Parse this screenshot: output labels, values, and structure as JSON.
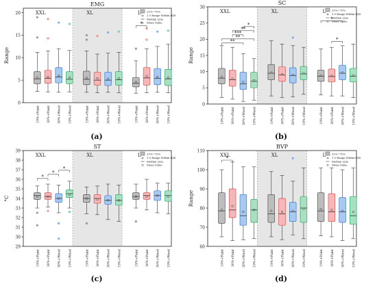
{
  "figure": {
    "captions": [
      "(a)",
      "(b)",
      "(c)",
      "(d)"
    ]
  },
  "chart_data": [
    {
      "type": "boxplot",
      "panel": "(a)",
      "title": "EMG",
      "xlabel": "",
      "ylabel": "Range",
      "ylim": [
        0,
        21
      ],
      "yticks": [
        0,
        5,
        10,
        15,
        20
      ],
      "groups": [
        "XXL",
        "XL",
        "L"
      ],
      "categories": [
        "19%+Paint",
        "30%+Paint",
        "30%+Wood",
        "19%+Wood"
      ],
      "legend": {
        "position": "top-right",
        "entries": [
          "25%~75%",
          "1.5 Range Within IQR",
          "Median Line",
          "Mean Value"
        ]
      },
      "boxes": [
        {
          "group": "XXL",
          "category": "19%+Paint",
          "q1": 4.2,
          "median": 5.3,
          "q3": 6.9,
          "mean": 5.6,
          "whisker_low": 2.5,
          "whisker_high": 11.2,
          "outliers": [
            19.0,
            14.5
          ]
        },
        {
          "group": "XXL",
          "category": "30%+Paint",
          "q1": 4.3,
          "median": 5.4,
          "q3": 7.2,
          "mean": 5.7,
          "whisker_low": 2.4,
          "whisker_high": 11.5,
          "outliers": [
            18.6,
            14.3
          ]
        },
        {
          "group": "XXL",
          "category": "30%+Wood",
          "q1": 4.4,
          "median": 5.7,
          "q3": 7.8,
          "mean": 6.0,
          "whisker_low": 2.3,
          "whisker_high": 12.0,
          "outliers": [
            17.8
          ]
        },
        {
          "group": "XXL",
          "category": "19%+Wood",
          "q1": 4.2,
          "median": 5.2,
          "q3": 6.9,
          "mean": 5.6,
          "whisker_low": 2.4,
          "whisker_high": 11.6,
          "outliers": [
            17.5
          ]
        },
        {
          "group": "XL",
          "category": "19%+Paint",
          "q1": 4.0,
          "median": 5.2,
          "q3": 7.0,
          "mean": 5.5,
          "whisker_low": 2.3,
          "whisker_high": 11.5,
          "outliers": [
            15.0,
            14.0
          ]
        },
        {
          "group": "XL",
          "category": "30%+Paint",
          "q1": 3.9,
          "median": 5.0,
          "q3": 6.8,
          "mean": 5.4,
          "whisker_low": 2.2,
          "whisker_high": 10.8,
          "outliers": [
            14.8
          ]
        },
        {
          "group": "XL",
          "category": "30%+Wood",
          "q1": 3.8,
          "median": 5.0,
          "q3": 6.8,
          "mean": 5.3,
          "whisker_low": 2.3,
          "whisker_high": 11.0,
          "outliers": [
            15.6
          ]
        },
        {
          "group": "XL",
          "category": "19%+Wood",
          "q1": 3.9,
          "median": 5.1,
          "q3": 6.9,
          "mean": 5.4,
          "whisker_low": 2.2,
          "whisker_high": 11.2,
          "outliers": [
            15.8
          ]
        },
        {
          "group": "L",
          "category": "19%+Paint",
          "q1": 3.5,
          "median": 4.3,
          "q3": 5.6,
          "mean": 4.6,
          "whisker_low": 2.1,
          "whisker_high": 9.3,
          "outliers": [
            12.0
          ]
        },
        {
          "group": "L",
          "category": "30%+Paint",
          "q1": 3.9,
          "median": 5.5,
          "q3": 7.8,
          "mean": 5.9,
          "whisker_low": 2.2,
          "whisker_high": 12.0,
          "outliers": [
            14.0,
            16.5
          ]
        },
        {
          "group": "L",
          "category": "30%+Wood",
          "q1": 4.0,
          "median": 5.4,
          "q3": 7.6,
          "mean": 5.7,
          "whisker_low": 2.3,
          "whisker_high": 12.5,
          "outliers": [
            15.8
          ]
        },
        {
          "group": "L",
          "category": "19%+Wood",
          "q1": 3.8,
          "median": 5.3,
          "q3": 7.4,
          "mean": 5.6,
          "whisker_low": 2.2,
          "whisker_high": 13.0,
          "outliers": [
            16.0
          ]
        }
      ],
      "significance": [
        {
          "group": "L",
          "from": 0,
          "to": 1,
          "label": "*"
        }
      ]
    },
    {
      "type": "boxplot",
      "panel": "(b)",
      "title": "SC",
      "xlabel": "",
      "ylabel": "Range",
      "ylim": [
        0,
        30
      ],
      "yticks": [
        0,
        5,
        10,
        15,
        20,
        25,
        30
      ],
      "groups": [
        "XXL",
        "XL",
        "L"
      ],
      "categories": [
        "19%+Paint",
        "30%+Paint",
        "30%+Wood",
        "19%+Wood"
      ],
      "legend": {
        "position": "top-right",
        "entries": [
          "25%~75%",
          "1.5 Range Within IQR",
          "Median Line",
          "Mean Value"
        ]
      },
      "boxes": [
        {
          "group": "XXL",
          "category": "19%+Paint",
          "q1": 6.2,
          "median": 8.0,
          "q3": 11.0,
          "mean": 8.3,
          "whisker_low": 2.0,
          "whisker_high": 18.0,
          "outliers": []
        },
        {
          "group": "XXL",
          "category": "30%+Paint",
          "q1": 5.5,
          "median": 7.5,
          "q3": 10.5,
          "mean": 7.8,
          "whisker_low": 1.5,
          "whisker_high": 17.5,
          "outliers": []
        },
        {
          "group": "XXL",
          "category": "30%+Wood",
          "q1": 4.5,
          "median": 6.2,
          "q3": 9.8,
          "mean": 6.8,
          "whisker_low": 0.8,
          "whisker_high": 15.5,
          "outliers": []
        },
        {
          "group": "XXL",
          "category": "19%+Wood",
          "q1": 5.0,
          "median": 7.0,
          "q3": 9.8,
          "mean": 7.3,
          "whisker_low": 1.2,
          "whisker_high": 14.0,
          "outliers": []
        },
        {
          "group": "XL",
          "category": "19%+Paint",
          "q1": 7.5,
          "median": 9.5,
          "q3": 12.2,
          "mean": 9.7,
          "whisker_low": 2.5,
          "whisker_high": 19.5,
          "outliers": []
        },
        {
          "group": "XL",
          "category": "30%+Paint",
          "q1": 7.0,
          "median": 9.0,
          "q3": 11.5,
          "mean": 9.2,
          "whisker_low": 2.0,
          "whisker_high": 18.5,
          "outliers": []
        },
        {
          "group": "XL",
          "category": "30%+Wood",
          "q1": 6.5,
          "median": 8.8,
          "q3": 11.2,
          "mean": 9.0,
          "whisker_low": 2.2,
          "whisker_high": 18.0,
          "outliers": [
            20.5
          ]
        },
        {
          "group": "XL",
          "category": "19%+Wood",
          "q1": 7.5,
          "median": 9.3,
          "q3": 11.6,
          "mean": 9.5,
          "whisker_low": 3.0,
          "whisker_high": 17.5,
          "outliers": []
        },
        {
          "group": "L",
          "category": "19%+Paint",
          "q1": 7.0,
          "median": 8.6,
          "q3": 10.5,
          "mean": 8.8,
          "whisker_low": 2.8,
          "whisker_high": 17.0,
          "outliers": []
        },
        {
          "group": "L",
          "category": "30%+Paint",
          "q1": 6.8,
          "median": 8.5,
          "q3": 10.8,
          "mean": 8.7,
          "whisker_low": 2.5,
          "whisker_high": 17.5,
          "outliers": []
        },
        {
          "group": "L",
          "category": "30%+Wood",
          "q1": 7.5,
          "median": 9.5,
          "q3": 12.0,
          "mean": 9.7,
          "whisker_low": 2.5,
          "whisker_high": 18.0,
          "outliers": []
        },
        {
          "group": "L",
          "category": "19%+Wood",
          "q1": 6.8,
          "median": 8.6,
          "q3": 11.0,
          "mean": 8.8,
          "whisker_low": 2.0,
          "whisker_high": 18.5,
          "outliers": []
        }
      ],
      "significance": [
        {
          "group": "XXL",
          "from": 0,
          "to": 2,
          "label": "**"
        },
        {
          "group": "XXL",
          "from": 0,
          "to": 3,
          "label": "**"
        },
        {
          "group": "XXL",
          "from": 1,
          "to": 2,
          "label": "***"
        },
        {
          "group": "XXL",
          "from": 1,
          "to": 3,
          "label": "**"
        },
        {
          "group": "XXL",
          "from": 2,
          "to": 3,
          "label": "*"
        },
        {
          "group": "L",
          "from": 0,
          "to": 2,
          "label": "*"
        },
        {
          "group": "L",
          "from": 1,
          "to": 2,
          "label": "*"
        }
      ]
    },
    {
      "type": "boxplot",
      "panel": "(c)",
      "title": "ST",
      "xlabel": "",
      "ylabel": "°C",
      "ylim": [
        29,
        39
      ],
      "yticks": [
        29,
        30,
        31,
        32,
        33,
        34,
        35,
        36,
        37,
        38,
        39
      ],
      "groups": [
        "XXL",
        "XL",
        "L"
      ],
      "categories": [
        "19%+Paint",
        "30%+Paint",
        "30%+Wood",
        "19%+Wood"
      ],
      "legend": {
        "position": "top-right",
        "entries": [
          "25%~75%",
          "1.5 Range Within IQR",
          "Median Line",
          "Mean Value"
        ]
      },
      "boxes": [
        {
          "group": "XXL",
          "category": "19%+Paint",
          "q1": 33.9,
          "median": 34.3,
          "q3": 34.6,
          "mean": 34.2,
          "whisker_low": 33.0,
          "whisker_high": 35.3,
          "outliers": [
            31.2,
            32.5
          ]
        },
        {
          "group": "XXL",
          "category": "30%+Paint",
          "q1": 33.9,
          "median": 34.2,
          "q3": 34.6,
          "mean": 34.2,
          "whisker_low": 33.1,
          "whisker_high": 35.5,
          "outliers": [
            32.7
          ]
        },
        {
          "group": "XXL",
          "category": "30%+Wood",
          "q1": 33.6,
          "median": 34.0,
          "q3": 34.5,
          "mean": 34.0,
          "whisker_low": 32.5,
          "whisker_high": 35.4,
          "outliers": [
            29.8,
            31.4
          ]
        },
        {
          "group": "XXL",
          "category": "19%+Wood",
          "q1": 34.1,
          "median": 34.5,
          "q3": 34.9,
          "mean": 34.4,
          "whisker_low": 33.0,
          "whisker_high": 35.8,
          "outliers": [
            32.6
          ]
        },
        {
          "group": "XL",
          "category": "19%+Paint",
          "q1": 33.6,
          "median": 34.0,
          "q3": 34.4,
          "mean": 34.0,
          "whisker_low": 32.4,
          "whisker_high": 35.2,
          "outliers": [
            31.4
          ]
        },
        {
          "group": "XL",
          "category": "30%+Paint",
          "q1": 33.5,
          "median": 34.0,
          "q3": 34.4,
          "mean": 33.9,
          "whisker_low": 32.3,
          "whisker_high": 35.3,
          "outliers": []
        },
        {
          "group": "XL",
          "category": "30%+Wood",
          "q1": 33.4,
          "median": 33.8,
          "q3": 34.3,
          "mean": 33.8,
          "whisker_low": 31.8,
          "whisker_high": 35.5,
          "outliers": []
        },
        {
          "group": "XL",
          "category": "19%+Wood",
          "q1": 33.3,
          "median": 33.8,
          "q3": 34.4,
          "mean": 33.8,
          "whisker_low": 31.6,
          "whisker_high": 35.4,
          "outliers": []
        },
        {
          "group": "L",
          "category": "19%+Paint",
          "q1": 33.9,
          "median": 34.2,
          "q3": 34.6,
          "mean": 34.2,
          "whisker_low": 33.0,
          "whisker_high": 35.5,
          "outliers": [
            31.6
          ]
        },
        {
          "group": "L",
          "category": "30%+Paint",
          "q1": 33.9,
          "median": 34.3,
          "q3": 34.6,
          "mean": 34.2,
          "whisker_low": 32.8,
          "whisker_high": 36.0,
          "outliers": []
        },
        {
          "group": "L",
          "category": "30%+Wood",
          "q1": 33.8,
          "median": 34.3,
          "q3": 34.8,
          "mean": 34.3,
          "whisker_low": 32.5,
          "whisker_high": 35.6,
          "outliers": []
        },
        {
          "group": "L",
          "category": "19%+Wood",
          "q1": 33.7,
          "median": 34.3,
          "q3": 34.8,
          "mean": 34.2,
          "whisker_low": 32.4,
          "whisker_high": 35.6,
          "outliers": []
        }
      ],
      "significance": [
        {
          "group": "XXL",
          "from": 0,
          "to": 1,
          "label": "*"
        },
        {
          "group": "XXL",
          "from": 1,
          "to": 2,
          "label": "*"
        },
        {
          "group": "XXL",
          "from": 2,
          "to": 3,
          "label": "*"
        }
      ]
    },
    {
      "type": "boxplot",
      "panel": "(d)",
      "title": "BVP",
      "xlabel": "",
      "ylabel": "Range",
      "ylim": [
        60,
        110
      ],
      "yticks": [
        60,
        70,
        80,
        90,
        100,
        110
      ],
      "groups": [
        "XXL",
        "XL",
        "L"
      ],
      "categories": [
        "19%+Paint",
        "30%+Paint",
        "30%+Wood",
        "19%+Wood"
      ],
      "legend": {
        "position": "top-right",
        "entries": [
          "25%~75%",
          "1.5 Range Within IQR",
          "Median Line",
          "Mean Value"
        ]
      },
      "boxes": [
        {
          "group": "XXL",
          "category": "19%+Paint",
          "q1": 72.0,
          "median": 78.5,
          "q3": 88.0,
          "mean": 79.0,
          "whisker_low": 65.0,
          "whisker_high": 100.0,
          "outliers": []
        },
        {
          "group": "XXL",
          "category": "30%+Paint",
          "q1": 75.0,
          "median": 79.0,
          "q3": 90.0,
          "mean": 81.0,
          "whisker_low": 63.0,
          "whisker_high": 104.0,
          "outliers": []
        },
        {
          "group": "XXL",
          "category": "30%+Wood",
          "q1": 71.0,
          "median": 76.0,
          "q3": 87.0,
          "mean": 78.0,
          "whisker_low": 63.5,
          "whisker_high": 101.5,
          "outliers": []
        },
        {
          "group": "XXL",
          "category": "19%+Wood",
          "q1": 72.5,
          "median": 79.0,
          "q3": 84.5,
          "mean": 79.0,
          "whisker_low": 64.0,
          "whisker_high": 101.5,
          "outliers": []
        },
        {
          "group": "XL",
          "category": "19%+Paint",
          "q1": 72.5,
          "median": 77.0,
          "q3": 87.0,
          "mean": 78.5,
          "whisker_low": 65.0,
          "whisker_high": 99.0,
          "outliers": []
        },
        {
          "group": "XL",
          "category": "30%+Paint",
          "q1": 71.0,
          "median": 77.0,
          "q3": 85.0,
          "mean": 78.0,
          "whisker_low": 63.5,
          "whisker_high": 97.0,
          "outliers": []
        },
        {
          "group": "XL",
          "category": "30%+Wood",
          "q1": 73.0,
          "median": 78.0,
          "q3": 83.0,
          "mean": 78.5,
          "whisker_low": 66.0,
          "whisker_high": 94.0,
          "outliers": [
            106.0
          ]
        },
        {
          "group": "XL",
          "category": "19%+Wood",
          "q1": 72.5,
          "median": 80.0,
          "q3": 86.0,
          "mean": 79.5,
          "whisker_low": 64.0,
          "whisker_high": 101.0,
          "outliers": []
        },
        {
          "group": "L",
          "category": "19%+Paint",
          "q1": 73.0,
          "median": 78.5,
          "q3": 88.0,
          "mean": 79.5,
          "whisker_low": 65.5,
          "whisker_high": 101.0,
          "outliers": []
        },
        {
          "group": "L",
          "category": "30%+Paint",
          "q1": 73.0,
          "median": 78.0,
          "q3": 87.5,
          "mean": 79.0,
          "whisker_low": 65.0,
          "whisker_high": 101.0,
          "outliers": []
        },
        {
          "group": "L",
          "category": "30%+Wood",
          "q1": 72.5,
          "median": 78.0,
          "q3": 85.5,
          "mean": 78.5,
          "whisker_low": 63.0,
          "whisker_high": 100.0,
          "outliers": []
        },
        {
          "group": "L",
          "category": "19%+Wood",
          "q1": 71.5,
          "median": 76.0,
          "q3": 86.0,
          "mean": 78.0,
          "whisker_low": 64.0,
          "whisker_high": 101.0,
          "outliers": []
        }
      ],
      "significance": [
        {
          "group": "XXL",
          "from": 0,
          "to": 1,
          "label": "*"
        }
      ]
    }
  ],
  "colors": {
    "box_fills": [
      "#bdbdbd",
      "#f5b7b7",
      "#a9c9ef",
      "#a8e0c1"
    ],
    "box_strokes": [
      "#555555",
      "#d9534f",
      "#3a7bd5",
      "#2eaa6a"
    ],
    "xl_band": "#e6e6e6"
  }
}
